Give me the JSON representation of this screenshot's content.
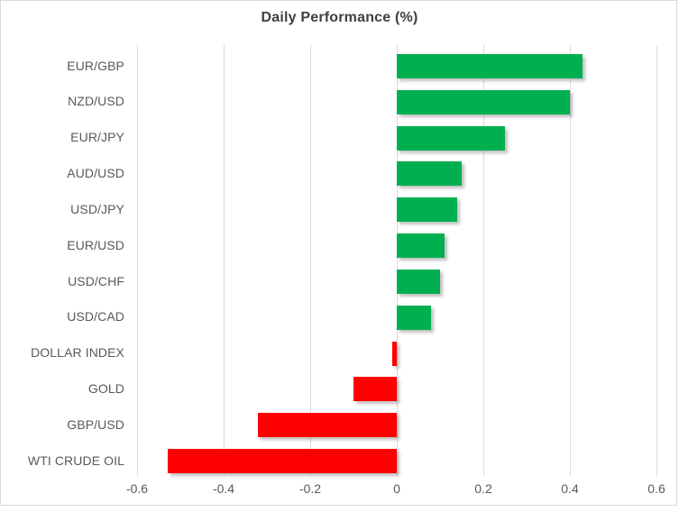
{
  "chart_data": {
    "type": "bar",
    "orientation": "horizontal",
    "title": "Daily Performance (%)",
    "categories": [
      "EUR/GBP",
      "NZD/USD",
      "EUR/JPY",
      "AUD/USD",
      "USD/JPY",
      "EUR/USD",
      "USD/CHF",
      "USD/CAD",
      "DOLLAR INDEX",
      "GOLD",
      "GBP/USD",
      "WTI CRUDE OIL"
    ],
    "values": [
      0.43,
      0.4,
      0.25,
      0.15,
      0.14,
      0.11,
      0.1,
      0.08,
      -0.01,
      -0.1,
      -0.32,
      -0.53
    ],
    "xlabel": "",
    "ylabel": "",
    "xlim": [
      -0.6,
      0.6
    ],
    "x_tick_values": [
      -0.6,
      -0.4,
      -0.2,
      0,
      0.2,
      0.4,
      0.6
    ],
    "x_tick_labels": [
      "-0.6",
      "-0.4",
      "-0.2",
      "0",
      "0.2",
      "0.4",
      "0.6"
    ],
    "grid": "vertical-only",
    "legend": "none",
    "data_labels": "none",
    "colors": {
      "positive_bar": "#00B050",
      "negative_bar": "#FF0000",
      "gridline": "#D9D9D9",
      "title_text": "#3F3F3F",
      "axis_text": "#595959",
      "chart_border": "#D9D9D9",
      "background": "#FFFFFF"
    }
  }
}
